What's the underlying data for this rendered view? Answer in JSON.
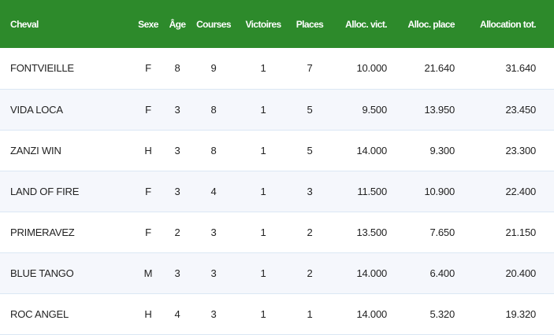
{
  "header": {
    "columns": [
      "Cheval",
      "Sexe",
      "Âge",
      "Courses",
      "Victoires",
      "Places",
      "Alloc. vict.",
      "Alloc. place",
      "Allocation tot."
    ],
    "background_color": "#2d8a2b"
  },
  "rows": [
    [
      "FONTVIEILLE",
      "F",
      "8",
      "9",
      "1",
      "7",
      "10.000",
      "21.640",
      "31.640"
    ],
    [
      "VIDA LOCA",
      "F",
      "3",
      "8",
      "1",
      "5",
      "9.500",
      "13.950",
      "23.450"
    ],
    [
      "ZANZI WIN",
      "H",
      "3",
      "8",
      "1",
      "5",
      "14.000",
      "9.300",
      "23.300"
    ],
    [
      "LAND OF FIRE",
      "F",
      "3",
      "4",
      "1",
      "3",
      "11.500",
      "10.900",
      "22.400"
    ],
    [
      "PRIMERAVEZ",
      "F",
      "2",
      "3",
      "1",
      "2",
      "13.500",
      "7.650",
      "21.150"
    ],
    [
      "BLUE TANGO",
      "M",
      "3",
      "3",
      "1",
      "2",
      "14.000",
      "6.400",
      "20.400"
    ],
    [
      "ROC ANGEL",
      "H",
      "4",
      "3",
      "1",
      "1",
      "14.000",
      "5.320",
      "19.320"
    ]
  ]
}
